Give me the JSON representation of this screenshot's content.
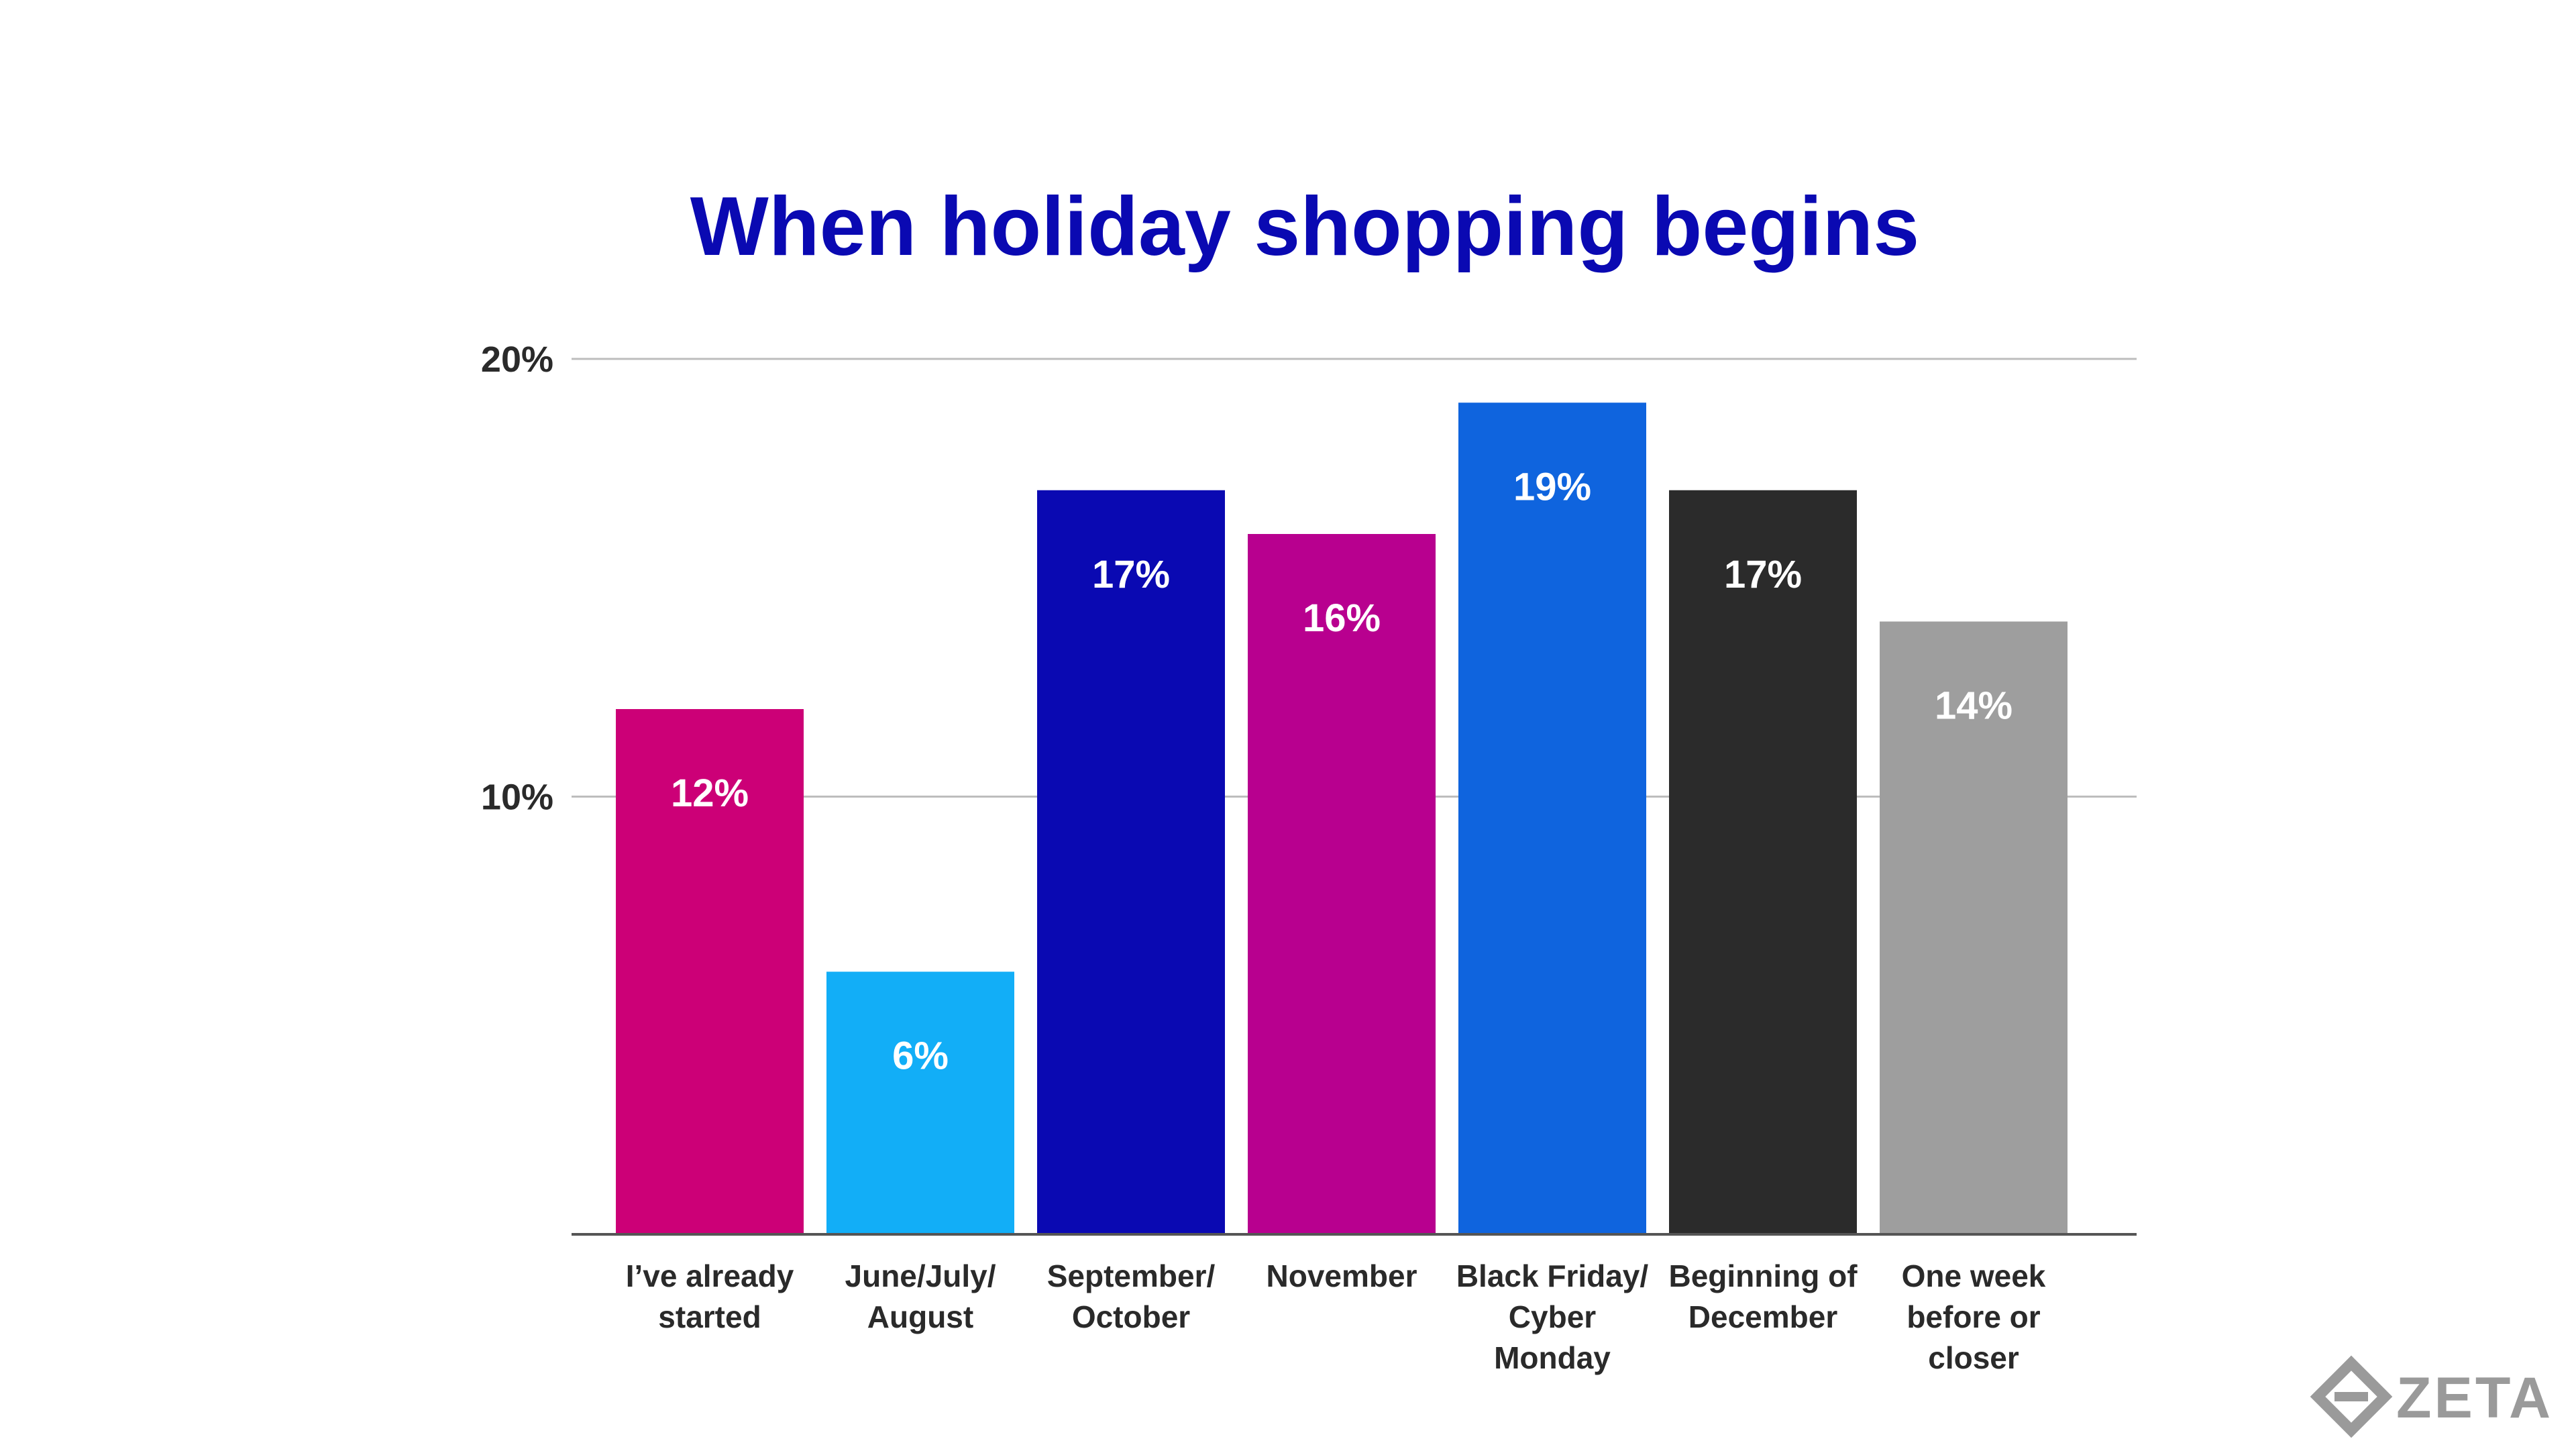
{
  "chart_data": {
    "type": "bar",
    "title": "When holiday shopping begins",
    "categories": [
      [
        "I’ve already",
        "started"
      ],
      [
        "June/July/",
        "August"
      ],
      [
        "September/",
        "October"
      ],
      [
        "November"
      ],
      [
        "Black Friday/",
        "Cyber",
        "Monday"
      ],
      [
        "Beginning of",
        "December"
      ],
      [
        "One week",
        "before or",
        "closer"
      ]
    ],
    "values": [
      12,
      6,
      17,
      16,
      19,
      17,
      14
    ],
    "value_labels": [
      "12%",
      "6%",
      "17%",
      "16%",
      "19%",
      "17%",
      "14%"
    ],
    "colors": [
      "#cc0077",
      "#12aef7",
      "#0a09b2",
      "#b8008f",
      "#0f64de",
      "#2b2b2b",
      "#9e9e9e"
    ],
    "ylim": [
      0,
      20
    ],
    "yticks": [
      {
        "value": 10,
        "label": "10%"
      },
      {
        "value": 20,
        "label": "20%"
      }
    ],
    "grid": true,
    "xlabel": "",
    "ylabel": ""
  },
  "brand": {
    "logo_text": "ZETA",
    "icon": "zeta-diamond-icon",
    "color": "#9a9a9a"
  }
}
